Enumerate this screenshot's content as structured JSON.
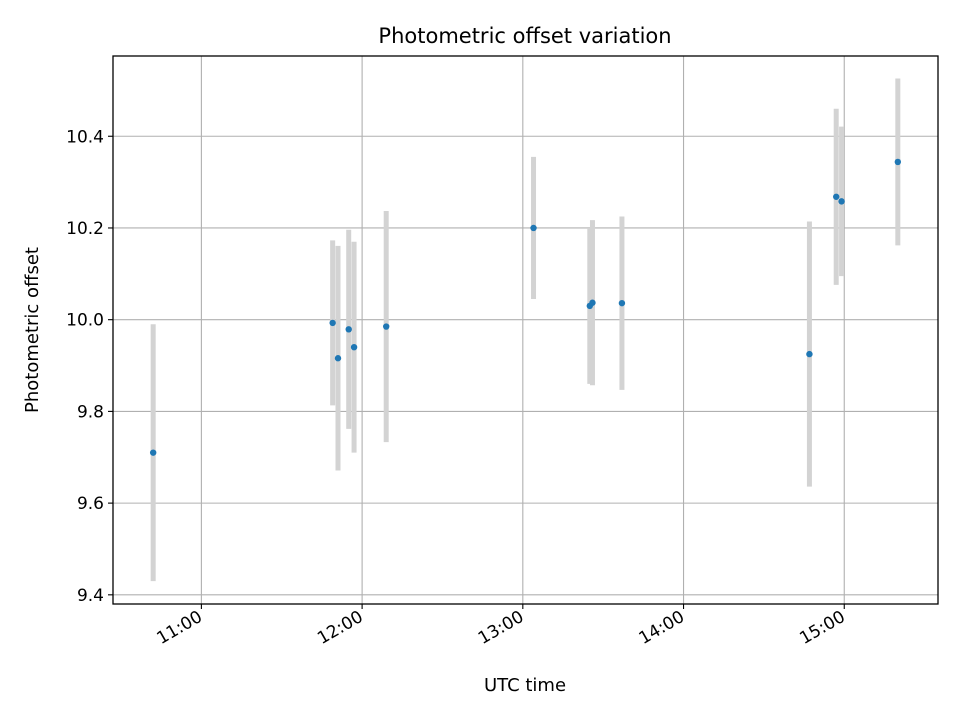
{
  "chart_data": {
    "type": "scatter",
    "title": "Photometric offset variation",
    "xlabel": "UTC time",
    "ylabel": "Photometric offset",
    "xlim": [
      "10:27",
      "15:35"
    ],
    "ylim": [
      9.38,
      10.575
    ],
    "grid": true,
    "colors": {
      "point": "#1f77b4",
      "errorbar": "#d3d3d3",
      "grid": "#b0b0b0"
    },
    "xticks": [
      "11:00",
      "12:00",
      "13:00",
      "14:00",
      "15:00"
    ],
    "yticks": [
      "9.4",
      "9.6",
      "9.8",
      "10.0",
      "10.2",
      "10.4"
    ],
    "points": [
      {
        "x": "10:42",
        "y": 9.71,
        "err": 0.28
      },
      {
        "x": "11:49",
        "y": 9.993,
        "err": 0.18
      },
      {
        "x": "11:51",
        "y": 9.916,
        "err": 0.245
      },
      {
        "x": "11:55",
        "y": 9.979,
        "err": 0.217
      },
      {
        "x": "11:57",
        "y": 9.94,
        "err": 0.23
      },
      {
        "x": "12:09",
        "y": 9.985,
        "err": 0.252
      },
      {
        "x": "13:04",
        "y": 10.2,
        "err": 0.155
      },
      {
        "x": "13:25",
        "y": 10.03,
        "err": 0.17
      },
      {
        "x": "13:26",
        "y": 10.037,
        "err": 0.18
      },
      {
        "x": "13:37",
        "y": 10.036,
        "err": 0.189
      },
      {
        "x": "14:47",
        "y": 9.925,
        "err": 0.289
      },
      {
        "x": "14:57",
        "y": 10.268,
        "err": 0.192
      },
      {
        "x": "14:59",
        "y": 10.258,
        "err": 0.163
      },
      {
        "x": "15:20",
        "y": 10.344,
        "err": 0.182
      }
    ]
  }
}
